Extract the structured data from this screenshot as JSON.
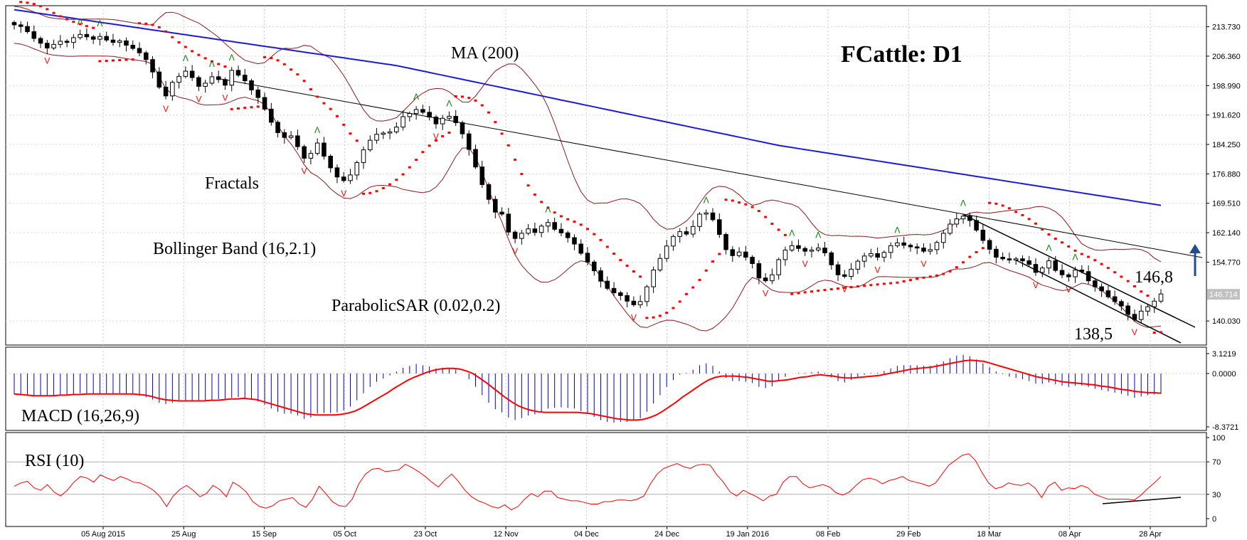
{
  "chart_data": [
    {
      "type": "candlestick",
      "title": "FCattle: D1",
      "ylim": [
        134.0,
        219.0
      ],
      "y_ticks": [
        "213.730",
        "206.360",
        "198.990",
        "191.620",
        "184.250",
        "176.880",
        "169.510",
        "162.140",
        "154.770",
        "140.030"
      ],
      "y_tick_values": [
        213.73,
        206.36,
        198.99,
        191.62,
        184.25,
        176.88,
        169.51,
        162.14,
        154.77,
        140.03
      ],
      "current_price": "146.714",
      "current_price_value": 146.714,
      "x_ticks": [
        "05 Aug 2015",
        "25 Aug",
        "15 Sep",
        "05 Oct",
        "23 Oct",
        "12 Nov",
        "04 Dec",
        "24 Dec",
        "19 Jan 2016",
        "08 Feb",
        "29 Feb",
        "18 Mar",
        "08 Apr",
        "28 Apr"
      ],
      "indicator_labels": [
        "MA (200)",
        "Fractals",
        "Bollinger Band (16,2.1)",
        "ParabolicSAR (0.02,0.2)"
      ],
      "annotations": [
        "146,8",
        "138,5"
      ],
      "close_series": [
        214.2,
        213.8,
        212.5,
        210.8,
        209.6,
        208.4,
        209.3,
        210.1,
        209.8,
        211.0,
        211.8,
        211.2,
        210.6,
        211.3,
        210.4,
        209.8,
        210.2,
        209.1,
        208.3,
        207.2,
        205.5,
        202.4,
        198.6,
        196.4,
        199.8,
        201.3,
        202.6,
        201.0,
        198.8,
        199.6,
        201.2,
        200.5,
        199.1,
        202.8,
        201.6,
        200.2,
        197.9,
        196.0,
        193.1,
        189.8,
        187.2,
        186.0,
        186.4,
        183.7,
        180.8,
        182.0,
        184.6,
        181.3,
        178.4,
        176.1,
        175.2,
        176.6,
        179.7,
        182.9,
        185.3,
        186.8,
        187.1,
        187.4,
        188.6,
        191.2,
        192.0,
        193.0,
        192.3,
        191.1,
        189.4,
        190.8,
        191.3,
        189.7,
        186.9,
        183.0,
        178.6,
        174.2,
        170.5,
        167.3,
        166.8,
        162.3,
        160.7,
        162.0,
        163.1,
        162.2,
        163.8,
        164.7,
        163.0,
        162.1,
        160.9,
        159.3,
        157.0,
        154.8,
        152.6,
        150.0,
        148.2,
        147.1,
        146.4,
        145.0,
        144.1,
        144.9,
        148.6,
        152.8,
        155.7,
        158.8,
        161.2,
        162.4,
        161.8,
        163.7,
        166.8,
        167.1,
        165.4,
        161.7,
        157.9,
        156.4,
        157.3,
        156.0,
        154.4,
        150.8,
        150.1,
        151.6,
        155.4,
        157.8,
        158.9,
        158.2,
        157.5,
        157.8,
        158.3,
        157.1,
        154.1,
        151.6,
        151.2,
        153.0,
        155.0,
        156.3,
        156.9,
        156.0,
        157.2,
        158.9,
        159.6,
        159.0,
        158.6,
        158.3,
        157.5,
        157.9,
        159.7,
        162.0,
        164.3,
        165.6,
        166.3,
        165.2,
        162.8,
        160.2,
        158.0,
        156.0,
        155.6,
        155.3,
        155.6,
        155.1,
        154.2,
        152.2,
        153.3,
        155.1,
        152.7,
        151.6,
        151.1,
        152.8,
        152.4,
        150.1,
        148.6,
        147.6,
        146.1,
        144.9,
        143.8,
        141.7,
        140.4,
        142.5,
        143.6,
        145.0,
        146.8
      ],
      "ma200": [
        218.0,
        204.0,
        184.0,
        169.0
      ],
      "sar_note": "ParabolicSAR (0.02,0.2)"
    },
    {
      "type": "bar+line",
      "name": "MACD (16,26,9)",
      "ylim": [
        -8.3721,
        3.1219
      ],
      "y_ticks": [
        "3.1219",
        "0.0000",
        "-8.3721"
      ],
      "histogram": [
        -3.3,
        -3.4,
        -3.5,
        -3.6,
        -3.5,
        -3.4,
        -3.4,
        -3.3,
        -3.3,
        -3.2,
        -3.1,
        -3.1,
        -3.2,
        -3.2,
        -3.1,
        -3.2,
        -3.1,
        -3.2,
        -3.3,
        -3.5,
        -3.7,
        -4.1,
        -4.6,
        -4.8,
        -4.6,
        -4.4,
        -4.2,
        -4.2,
        -4.3,
        -4.2,
        -4.1,
        -4.0,
        -4.1,
        -3.8,
        -3.7,
        -3.8,
        -4.1,
        -4.4,
        -4.9,
        -5.5,
        -6.0,
        -6.3,
        -6.3,
        -6.6,
        -7.1,
        -6.9,
        -6.3,
        -6.2,
        -6.2,
        -6.1,
        -5.8,
        -5.2,
        -4.2,
        -3.1,
        -2.1,
        -1.3,
        -0.8,
        -0.3,
        0.3,
        0.9,
        1.2,
        1.5,
        1.3,
        1.1,
        0.8,
        0.9,
        0.9,
        0.6,
        0.0,
        -0.9,
        -2.1,
        -3.4,
        -4.6,
        -5.6,
        -6.1,
        -6.9,
        -7.3,
        -7.0,
        -6.6,
        -6.4,
        -6.0,
        -5.5,
        -5.4,
        -5.3,
        -5.4,
        -5.5,
        -5.9,
        -6.3,
        -6.8,
        -7.3,
        -7.6,
        -7.7,
        -7.6,
        -7.6,
        -7.4,
        -7.0,
        -6.0,
        -4.7,
        -3.4,
        -2.1,
        -1.0,
        -0.2,
        0.1,
        0.6,
        1.3,
        1.6,
        1.2,
        0.3,
        -0.7,
        -1.2,
        -1.2,
        -1.3,
        -1.5,
        -2.1,
        -2.3,
        -2.0,
        -1.1,
        -0.5,
        0.0,
        0.1,
        0.1,
        0.2,
        0.3,
        0.1,
        -0.6,
        -1.2,
        -1.4,
        -1.0,
        -0.5,
        -0.2,
        0.1,
        0.1,
        0.4,
        0.8,
        1.2,
        1.3,
        1.3,
        1.3,
        1.2,
        1.2,
        1.5,
        1.9,
        2.4,
        2.8,
        2.9,
        2.7,
        2.2,
        1.6,
        1.0,
        0.3,
        -0.1,
        -0.5,
        -0.7,
        -0.9,
        -1.2,
        -1.6,
        -1.6,
        -1.4,
        -1.7,
        -1.9,
        -2.1,
        -1.9,
        -1.9,
        -2.1,
        -2.4,
        -2.6,
        -2.8,
        -3.0,
        -3.2,
        -3.5,
        -3.8,
        -3.6,
        -3.4,
        -3.3,
        -3.2
      ],
      "signal": [
        -3.2,
        -3.3,
        -3.4,
        -3.5,
        -3.5,
        -3.5,
        -3.5,
        -3.4,
        -3.4,
        -3.3,
        -3.3,
        -3.2,
        -3.2,
        -3.2,
        -3.2,
        -3.2,
        -3.2,
        -3.2,
        -3.2,
        -3.3,
        -3.4,
        -3.6,
        -3.9,
        -4.1,
        -4.2,
        -4.3,
        -4.3,
        -4.3,
        -4.3,
        -4.3,
        -4.2,
        -4.2,
        -4.1,
        -4.0,
        -4.0,
        -3.9,
        -4.0,
        -4.1,
        -4.4,
        -4.7,
        -5.0,
        -5.3,
        -5.6,
        -5.9,
        -6.2,
        -6.4,
        -6.5,
        -6.5,
        -6.5,
        -6.5,
        -6.4,
        -6.2,
        -5.9,
        -5.4,
        -4.8,
        -4.2,
        -3.6,
        -3.0,
        -2.3,
        -1.7,
        -1.1,
        -0.6,
        -0.2,
        0.2,
        0.5,
        0.7,
        0.8,
        0.8,
        0.7,
        0.4,
        0.0,
        -0.7,
        -1.4,
        -2.2,
        -3.0,
        -3.8,
        -4.5,
        -5.1,
        -5.5,
        -5.8,
        -6.0,
        -6.1,
        -6.1,
        -6.1,
        -6.1,
        -6.1,
        -6.1,
        -6.2,
        -6.3,
        -6.5,
        -6.7,
        -6.9,
        -7.1,
        -7.2,
        -7.3,
        -7.3,
        -7.2,
        -6.9,
        -6.5,
        -5.9,
        -5.2,
        -4.5,
        -3.7,
        -3.0,
        -2.3,
        -1.6,
        -1.0,
        -0.6,
        -0.4,
        -0.4,
        -0.4,
        -0.5,
        -0.6,
        -0.8,
        -1.0,
        -1.2,
        -1.2,
        -1.1,
        -1.0,
        -0.8,
        -0.6,
        -0.5,
        -0.3,
        -0.2,
        -0.3,
        -0.4,
        -0.6,
        -0.7,
        -0.7,
        -0.6,
        -0.5,
        -0.4,
        -0.3,
        -0.1,
        0.1,
        0.3,
        0.5,
        0.7,
        0.8,
        0.9,
        1.0,
        1.2,
        1.4,
        1.6,
        1.8,
        2.0,
        2.1,
        2.0,
        1.9,
        1.6,
        1.3,
        1.0,
        0.7,
        0.4,
        0.1,
        -0.2,
        -0.5,
        -0.7,
        -0.9,
        -1.1,
        -1.3,
        -1.4,
        -1.5,
        -1.6,
        -1.7,
        -1.8,
        -2.0,
        -2.1,
        -2.3,
        -2.5,
        -2.6,
        -2.8,
        -2.9,
        -3.0,
        -3.0,
        -3.1
      ]
    },
    {
      "type": "line",
      "name": "RSI (10)",
      "ylim": [
        0,
        100
      ],
      "y_ticks": [
        "100",
        "70",
        "30",
        "0"
      ],
      "y_tick_values": [
        100,
        70,
        30,
        0
      ],
      "values": [
        40,
        44,
        46,
        38,
        35,
        42,
        33,
        28,
        35,
        45,
        52,
        50,
        45,
        54,
        50,
        47,
        52,
        49,
        45,
        44,
        40,
        35,
        27,
        15,
        28,
        36,
        41,
        35,
        27,
        31,
        41,
        36,
        27,
        45,
        40,
        33,
        21,
        15,
        13,
        16,
        22,
        24,
        26,
        18,
        14,
        24,
        40,
        31,
        21,
        16,
        15,
        24,
        43,
        55,
        61,
        62,
        58,
        59,
        60,
        67,
        63,
        58,
        52,
        45,
        39,
        48,
        55,
        46,
        35,
        27,
        22,
        19,
        15,
        13,
        17,
        11,
        15,
        24,
        31,
        27,
        34,
        34,
        26,
        24,
        22,
        22,
        20,
        18,
        18,
        21,
        21,
        23,
        23,
        22,
        24,
        28,
        43,
        55,
        62,
        65,
        68,
        64,
        62,
        66,
        67,
        66,
        54,
        45,
        33,
        28,
        35,
        31,
        27,
        22,
        28,
        30,
        45,
        52,
        52,
        43,
        38,
        40,
        42,
        39,
        32,
        29,
        33,
        41,
        48,
        50,
        48,
        43,
        47,
        49,
        52,
        47,
        45,
        43,
        40,
        44,
        55,
        66,
        72,
        78,
        80,
        72,
        57,
        44,
        37,
        39,
        44,
        42,
        41,
        44,
        38,
        26,
        40,
        45,
        35,
        38,
        37,
        41,
        38,
        30,
        27,
        24,
        24,
        24,
        24,
        23,
        29,
        37,
        44,
        52
      ],
      "levels": [
        70,
        30
      ]
    }
  ],
  "colors": {
    "candle_up": "#ffffff",
    "candle_down": "#000000",
    "ma": "#1c1cd6",
    "bollinger": "#8b1a1a",
    "sar": "#ff0000",
    "fractal_up": "#008000",
    "fractal_down": "#ff0000",
    "macd_hist": "#0000cc",
    "macd_signal": "#ff0000",
    "rsi": "#ff0000",
    "arrow": "#1f4e8c",
    "price_tag": "#c0c0c0"
  }
}
